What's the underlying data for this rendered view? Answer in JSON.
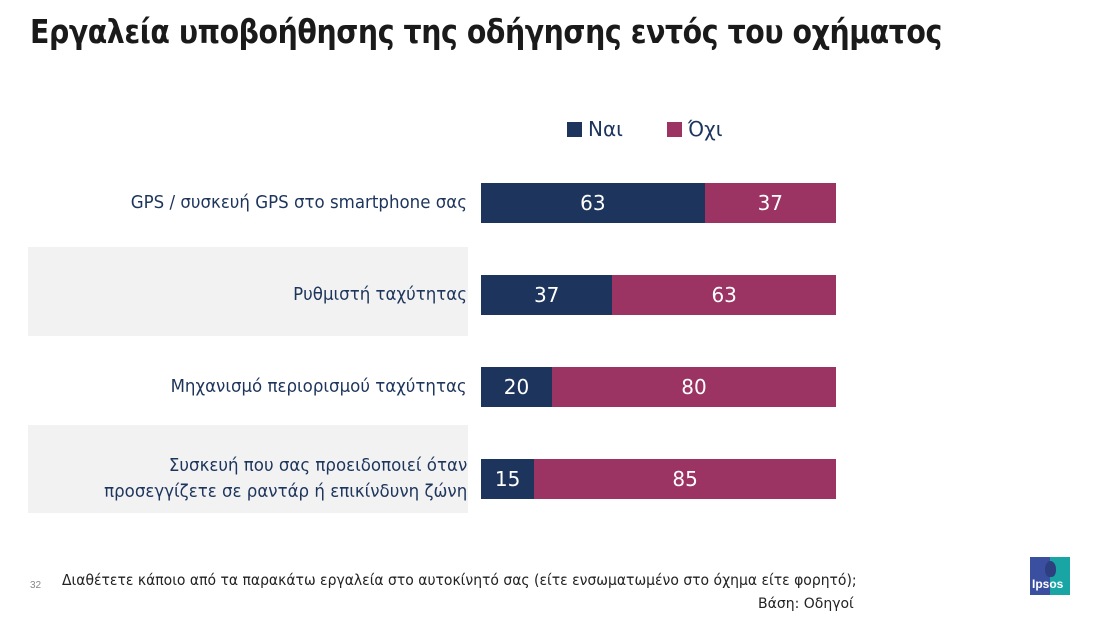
{
  "header": {
    "title": "Εργαλεία υποβοήθησης της οδήγησης εντός του οχήματος"
  },
  "chart_data": {
    "type": "bar",
    "orientation": "horizontal",
    "stacked": true,
    "title": "Εργαλεία υποβοήθησης της οδήγησης εντός του οχήματος",
    "categories": [
      [
        "GPS / συσκευή GPS στο smartphone σας"
      ],
      [
        "Ρυθμιστή ταχύτητας"
      ],
      [
        "Μηχανισμό περιορισμού ταχύτητας"
      ],
      [
        "Συσκευή που σας προειδοποιεί όταν",
        "προσεγγίζετε σε ραντάρ ή επικίνδυνη ζώνη"
      ]
    ],
    "series": [
      {
        "name": "Ναι",
        "color": "#1d355c",
        "values": [
          63,
          37,
          20,
          15
        ]
      },
      {
        "name": "Όχι",
        "color": "#9b3363",
        "values": [
          37,
          63,
          80,
          85
        ]
      }
    ],
    "xlim": [
      0,
      100
    ],
    "legend": "top",
    "grid": false,
    "unit": "%"
  },
  "footer": {
    "question": "Διαθέτετε κάποιο από τα παρακάτω εργαλεία στο αυτοκίνητό σας (είτε ενσωματωμένο στο όχημα είτε φορητό);",
    "base": "Βάση: Οδηγοί",
    "page_number": "32",
    "logo_text": "Ipsos"
  }
}
